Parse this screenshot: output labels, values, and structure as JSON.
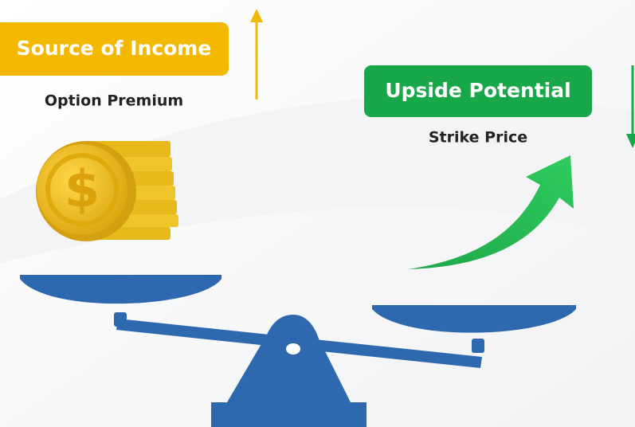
{
  "left": {
    "title": "Source of Income",
    "subtitle": "Option Premium"
  },
  "right": {
    "title": "Upside Potential",
    "subtitle": "Strike Price"
  }
}
